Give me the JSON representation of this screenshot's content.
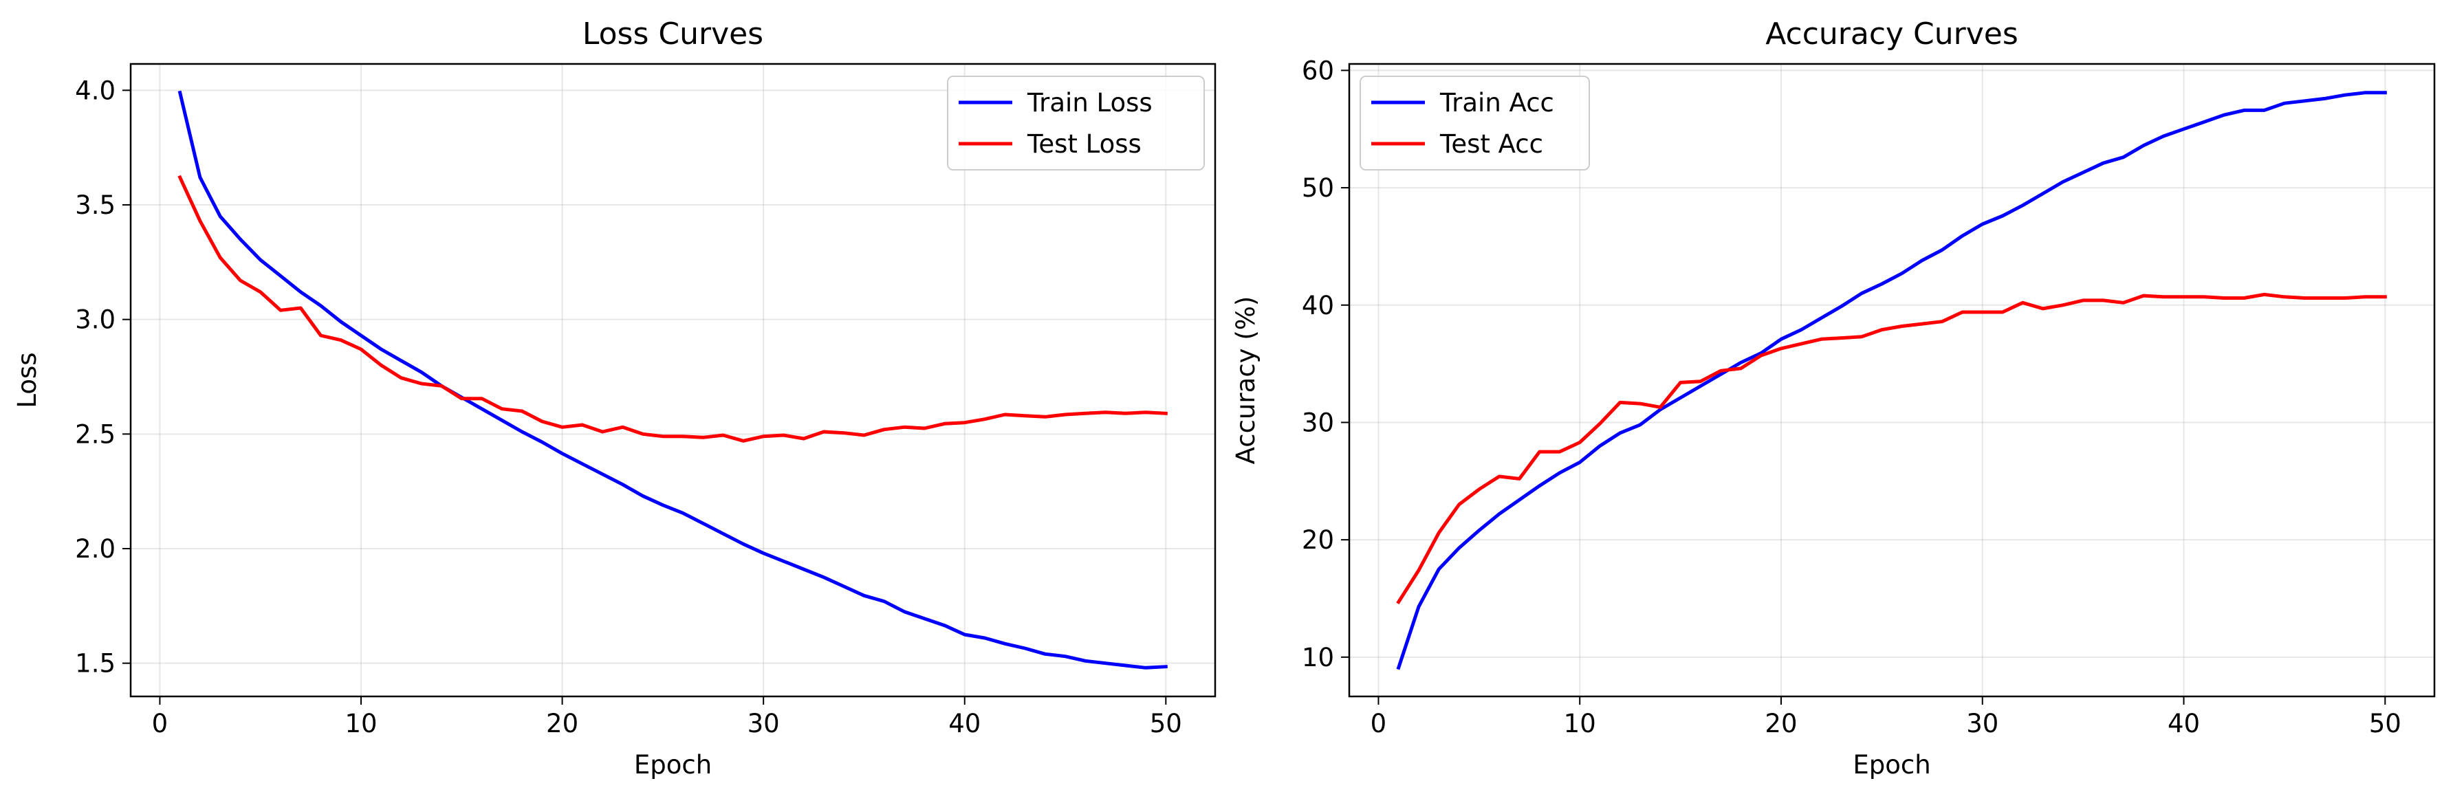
{
  "chart_data": [
    {
      "type": "line",
      "title": "Loss Curves",
      "xlabel": "Epoch",
      "ylabel": "Loss",
      "xlim": [
        -1.45,
        52.45
      ],
      "ylim": [
        1.355,
        4.115
      ],
      "xticks": [
        0,
        10,
        20,
        30,
        40,
        50
      ],
      "yticks": [
        1.5,
        2.0,
        2.5,
        3.0,
        3.5,
        4.0
      ],
      "ytick_labels": [
        "1.5",
        "2.0",
        "2.5",
        "3.0",
        "3.5",
        "4.0"
      ],
      "grid": true,
      "legend_position": "top-right",
      "x": [
        1,
        2,
        3,
        4,
        5,
        6,
        7,
        8,
        9,
        10,
        11,
        12,
        13,
        14,
        15,
        16,
        17,
        18,
        19,
        20,
        21,
        22,
        23,
        24,
        25,
        26,
        27,
        28,
        29,
        30,
        31,
        32,
        33,
        34,
        35,
        36,
        37,
        38,
        39,
        40,
        41,
        42,
        43,
        44,
        45,
        46,
        47,
        48,
        49,
        50
      ],
      "series": [
        {
          "name": "Train Loss",
          "color": "#0000ff",
          "values": [
            3.99,
            3.62,
            3.45,
            3.35,
            3.26,
            3.19,
            3.12,
            3.06,
            2.99,
            2.93,
            2.87,
            2.82,
            2.77,
            2.71,
            2.66,
            2.61,
            2.56,
            2.51,
            2.465,
            2.415,
            2.37,
            2.325,
            2.28,
            2.23,
            2.19,
            2.155,
            2.11,
            2.065,
            2.02,
            1.98,
            1.945,
            1.91,
            1.875,
            1.835,
            1.795,
            1.77,
            1.725,
            1.695,
            1.665,
            1.625,
            1.61,
            1.585,
            1.565,
            1.54,
            1.53,
            1.51,
            1.5,
            1.49,
            1.48,
            1.485
          ]
        },
        {
          "name": "Test Loss",
          "color": "#ff0000",
          "values": [
            3.62,
            3.43,
            3.27,
            3.17,
            3.12,
            3.04,
            3.05,
            2.93,
            2.91,
            2.87,
            2.8,
            2.745,
            2.72,
            2.71,
            2.655,
            2.655,
            2.61,
            2.6,
            2.555,
            2.53,
            2.54,
            2.51,
            2.53,
            2.5,
            2.49,
            2.49,
            2.485,
            2.495,
            2.47,
            2.49,
            2.495,
            2.48,
            2.51,
            2.505,
            2.495,
            2.52,
            2.53,
            2.525,
            2.545,
            2.55,
            2.565,
            2.585,
            2.58,
            2.575,
            2.585,
            2.59,
            2.595,
            2.59,
            2.595,
            2.59
          ]
        }
      ]
    },
    {
      "type": "line",
      "title": "Accuracy Curves",
      "xlabel": "Epoch",
      "ylabel": "Accuracy (%)",
      "xlim": [
        -1.45,
        52.45
      ],
      "ylim": [
        6.65,
        60.55
      ],
      "xticks": [
        0,
        10,
        20,
        30,
        40,
        50
      ],
      "yticks": [
        10,
        20,
        30,
        40,
        50,
        60
      ],
      "ytick_labels": [
        "10",
        "20",
        "30",
        "40",
        "50",
        "60"
      ],
      "grid": true,
      "legend_position": "top-left",
      "x": [
        1,
        2,
        3,
        4,
        5,
        6,
        7,
        8,
        9,
        10,
        11,
        12,
        13,
        14,
        15,
        16,
        17,
        18,
        19,
        20,
        21,
        22,
        23,
        24,
        25,
        26,
        27,
        28,
        29,
        30,
        31,
        32,
        33,
        34,
        35,
        36,
        37,
        38,
        39,
        40,
        41,
        42,
        43,
        44,
        45,
        46,
        47,
        48,
        49,
        50
      ],
      "series": [
        {
          "name": "Train Acc",
          "color": "#0000ff",
          "values": [
            9.1,
            14.3,
            17.5,
            19.3,
            20.8,
            22.2,
            23.4,
            24.6,
            25.7,
            26.6,
            28.0,
            29.1,
            29.8,
            31.1,
            32.1,
            33.1,
            34.1,
            35.1,
            35.9,
            37.1,
            37.9,
            38.9,
            39.9,
            41.0,
            41.8,
            42.7,
            43.8,
            44.7,
            45.9,
            46.9,
            47.6,
            48.5,
            49.5,
            50.5,
            51.3,
            52.1,
            52.6,
            53.6,
            54.4,
            55.0,
            55.6,
            56.2,
            56.6,
            56.6,
            57.2,
            57.4,
            57.6,
            57.9,
            58.1,
            58.1
          ]
        },
        {
          "name": "Test Acc",
          "color": "#ff0000",
          "values": [
            14.7,
            17.4,
            20.6,
            23.0,
            24.3,
            25.4,
            25.2,
            27.5,
            27.5,
            28.3,
            29.9,
            31.7,
            31.6,
            31.3,
            33.4,
            33.5,
            34.4,
            34.6,
            35.7,
            36.3,
            36.7,
            37.1,
            37.2,
            37.3,
            37.9,
            38.2,
            38.4,
            38.6,
            39.4,
            39.4,
            39.4,
            40.2,
            39.7,
            40.0,
            40.4,
            40.4,
            40.2,
            40.8,
            40.7,
            40.7,
            40.7,
            40.6,
            40.6,
            40.9,
            40.7,
            40.6,
            40.6,
            40.6,
            40.7,
            40.7
          ]
        }
      ]
    }
  ]
}
